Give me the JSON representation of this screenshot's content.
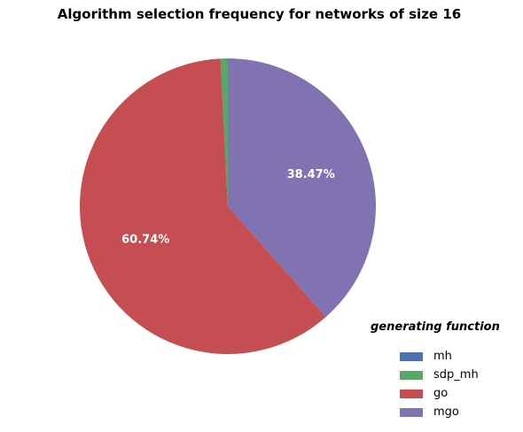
{
  "chart_data": {
    "type": "pie",
    "title": "Algorithm selection frequency for networks of size 16",
    "legend_title": "generating function",
    "legend_position": "bottom-right",
    "slices": [
      {
        "label": "mh",
        "value": 0.0,
        "color": "#4c72b0",
        "label_text": ""
      },
      {
        "label": "sdp_mh",
        "value": 0.79,
        "color": "#55a868",
        "label_text": ""
      },
      {
        "label": "go",
        "value": 60.74,
        "color": "#c44e52",
        "label_text": "60.74%"
      },
      {
        "label": "mgo",
        "value": 38.47,
        "color": "#8172b2",
        "label_text": "38.47%"
      }
    ]
  }
}
